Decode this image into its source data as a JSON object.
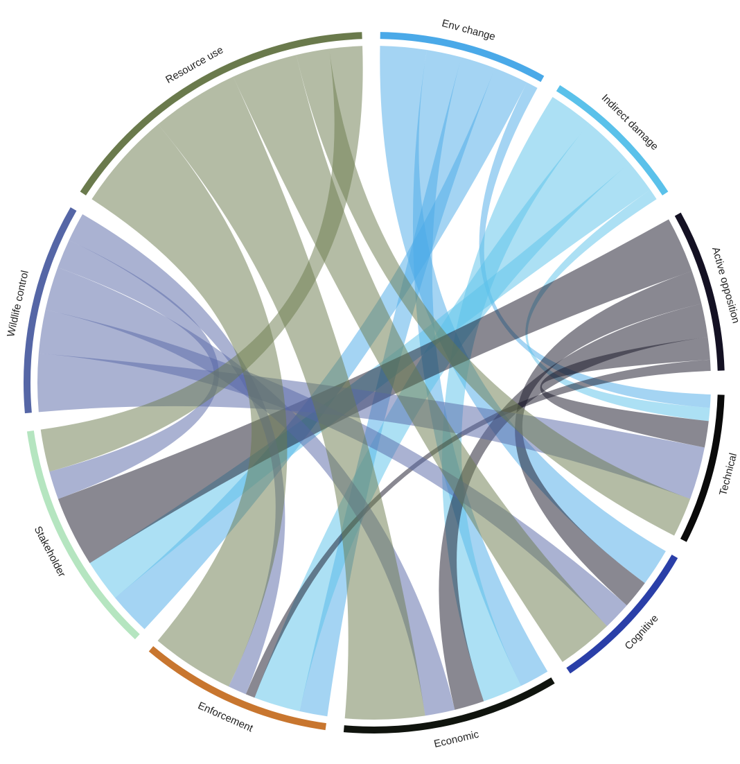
{
  "chart_data": {
    "type": "chord",
    "title": "",
    "groups": [
      {
        "name": "Env change",
        "color": "#4aa9e8",
        "start_deg": 1,
        "end_deg": 29
      },
      {
        "name": "Indirect damage",
        "color": "#5ac1ea",
        "start_deg": 32,
        "end_deg": 57
      },
      {
        "name": "Active opposition",
        "color": "#141123",
        "start_deg": 61,
        "end_deg": 88
      },
      {
        "name": "Technical",
        "color": "#0a0a0a",
        "start_deg": 92,
        "end_deg": 117
      },
      {
        "name": "Cognitive",
        "color": "#2a3fa8",
        "start_deg": 120,
        "end_deg": 146
      },
      {
        "name": "Economic",
        "color": "#10140e",
        "start_deg": 149,
        "end_deg": 185
      },
      {
        "name": "Enforcement",
        "color": "#c8762f",
        "start_deg": 188,
        "end_deg": 220
      },
      {
        "name": "Stakeholder",
        "color": "#b5e5c0",
        "start_deg": 223,
        "end_deg": 262
      },
      {
        "name": "Wildlife control",
        "color": "#5566a6",
        "start_deg": 265,
        "end_deg": 300
      },
      {
        "name": "Resource use",
        "color": "#6a7a4c",
        "start_deg": 303,
        "end_deg": 358
      }
    ],
    "links": [
      {
        "source": "Env change",
        "target": "Cognitive",
        "value": 4
      },
      {
        "source": "Env change",
        "target": "Economic",
        "value": 3
      },
      {
        "source": "Env change",
        "target": "Enforcement",
        "value": 3
      },
      {
        "source": "Env change",
        "target": "Stakeholder",
        "value": 3
      },
      {
        "source": "Env change",
        "target": "Technical",
        "value": 1
      },
      {
        "source": "Indirect damage",
        "target": "Economic",
        "value": 4
      },
      {
        "source": "Indirect damage",
        "target": "Enforcement",
        "value": 5
      },
      {
        "source": "Indirect damage",
        "target": "Stakeholder",
        "value": 3
      },
      {
        "source": "Indirect damage",
        "target": "Technical",
        "value": 1
      },
      {
        "source": "Active opposition",
        "target": "Stakeholder",
        "value": 5
      },
      {
        "source": "Active opposition",
        "target": "Cognitive",
        "value": 3
      },
      {
        "source": "Active opposition",
        "target": "Economic",
        "value": 3
      },
      {
        "source": "Active opposition",
        "target": "Technical",
        "value": 2
      },
      {
        "source": "Active opposition",
        "target": "Enforcement",
        "value": 1
      },
      {
        "source": "Wildlife control",
        "target": "Technical",
        "value": 4
      },
      {
        "source": "Wildlife control",
        "target": "Cognitive",
        "value": 3
      },
      {
        "source": "Wildlife control",
        "target": "Economic",
        "value": 3
      },
      {
        "source": "Wildlife control",
        "target": "Stakeholder",
        "value": 2
      },
      {
        "source": "Wildlife control",
        "target": "Enforcement",
        "value": 2
      },
      {
        "source": "Resource use",
        "target": "Enforcement",
        "value": 9
      },
      {
        "source": "Resource use",
        "target": "Economic",
        "value": 8
      },
      {
        "source": "Resource use",
        "target": "Cognitive",
        "value": 6
      },
      {
        "source": "Resource use",
        "target": "Technical",
        "value": 3
      },
      {
        "source": "Resource use",
        "target": "Stakeholder",
        "value": 3
      }
    ]
  }
}
